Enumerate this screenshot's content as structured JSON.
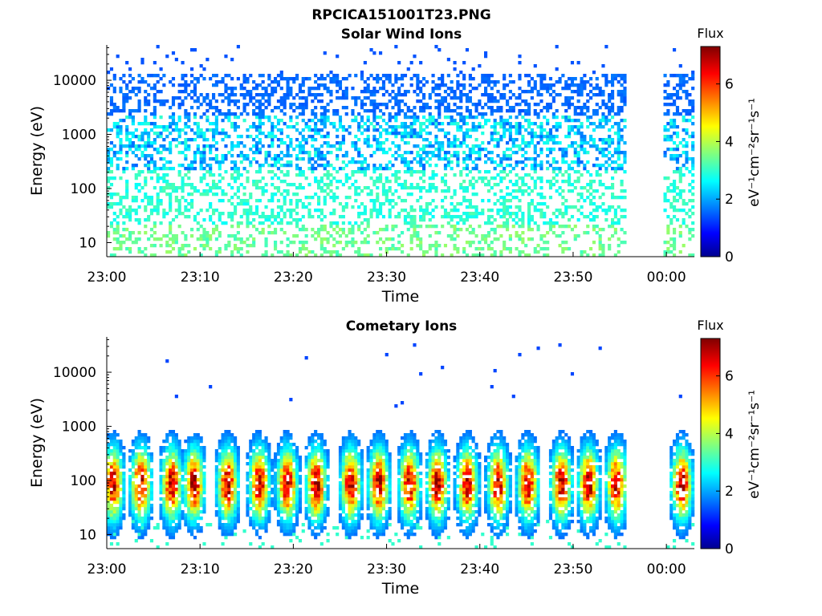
{
  "figure": {
    "title": "RPCICA151001T23.PNG"
  },
  "chart_data": [
    {
      "type": "heatmap",
      "title": "Solar Wind Ions",
      "xlabel": "Time",
      "ylabel": "Energy (eV)",
      "x_ticks": [
        "23:00",
        "23:10",
        "23:20",
        "23:30",
        "23:40",
        "23:50",
        "00:00"
      ],
      "x_range_minutes": [
        0,
        63
      ],
      "y_scale": "log",
      "y_ticks": [
        10,
        100,
        1000,
        10000
      ],
      "y_range": [
        5.5,
        45000
      ],
      "data_gap_minutes": [
        55.5,
        59.5
      ],
      "colorbar": {
        "title": "Flux",
        "label": "eV⁻¹cm⁻²sr⁻¹s⁻¹",
        "ticks": [
          0,
          2,
          4,
          6
        ],
        "range": [
          0,
          7.3
        ],
        "colormap": "jet"
      },
      "intensity_profile": {
        "high_energy_level": 1.4,
        "mid_energy_level": 2.5,
        "low_energy_level": 3.1,
        "max_level": 3.6
      }
    },
    {
      "type": "heatmap",
      "title": "Cometary Ions",
      "xlabel": "Time",
      "ylabel": "Energy (eV)",
      "x_ticks": [
        "23:00",
        "23:10",
        "23:20",
        "23:30",
        "23:40",
        "23:50",
        "00:00"
      ],
      "x_range_minutes": [
        0,
        63
      ],
      "y_scale": "log",
      "y_ticks": [
        10,
        100,
        1000,
        10000
      ],
      "y_range": [
        5.5,
        45000
      ],
      "data_gap_minutes": [
        55.5,
        59.5
      ],
      "colorbar": {
        "title": "Flux",
        "label": "eV⁻¹cm⁻²sr⁻¹s⁻¹",
        "ticks": [
          0,
          2,
          4,
          6
        ],
        "range": [
          0,
          7.3
        ],
        "colormap": "jet"
      },
      "burst_times_minutes": [
        0.5,
        3.5,
        6.8,
        9.2,
        12.8,
        16.2,
        19.2,
        22.3,
        26.0,
        29.0,
        32.3,
        35.3,
        38.5,
        41.8,
        45.0,
        48.6,
        51.5,
        54.5,
        61.5
      ],
      "burst_peak_energy_eV": 80,
      "burst_peak_flux": 5.5
    }
  ]
}
